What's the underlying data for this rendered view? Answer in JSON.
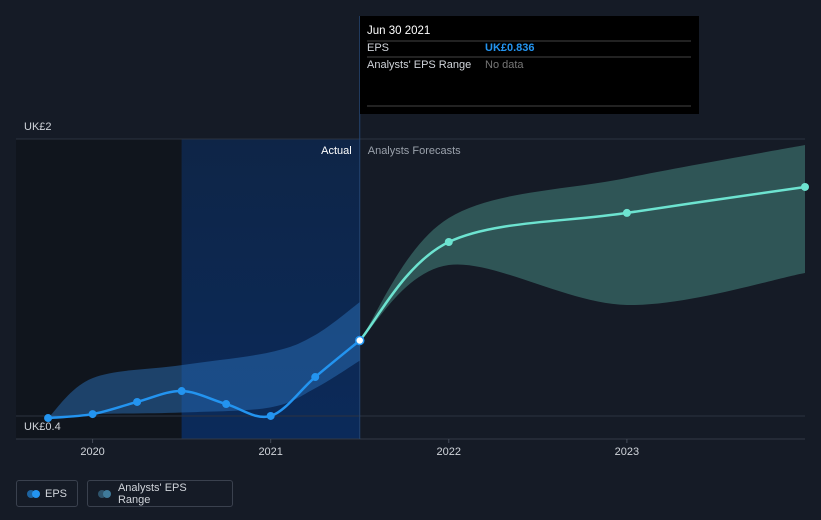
{
  "chart_data": {
    "type": "line",
    "xlim": [
      2019.57,
      2024
    ],
    "xticks": [
      2020,
      2021,
      2022,
      2023
    ],
    "ylim": [
      0.267,
      2
    ],
    "yticks": [
      {
        "value": 2,
        "label": "UK£2"
      },
      {
        "value": 0.4,
        "label": "UK£0.4"
      }
    ],
    "grid": true,
    "series": [
      {
        "name": "EPS",
        "color": "#2394f0",
        "x": [
          2019.75,
          2020,
          2020.25,
          2020.5,
          2020.75,
          2021,
          2021.25,
          2021.5
        ],
        "values": [
          0.388,
          0.411,
          0.481,
          0.544,
          0.469,
          0.4,
          0.625,
          0.836
        ],
        "forecast": {
          "color": "#6de3d0",
          "x": [
            2021.5,
            2022,
            2023,
            2024
          ],
          "values": [
            0.836,
            1.405,
            1.573,
            1.723
          ]
        }
      }
    ],
    "range": {
      "name": "Analysts' EPS Range",
      "color": "#3f7a9a",
      "bands": [
        {
          "color": "#2a6fb8",
          "x": [
            2019.75,
            2020,
            2020.5,
            2021,
            2021.25,
            2021.5
          ],
          "high": [
            0.388,
            0.619,
            0.694,
            0.769,
            0.868,
            1.058
          ],
          "low": [
            0.388,
            0.41,
            0.42,
            0.45,
            0.56,
            0.72
          ]
        },
        {
          "color": "#4a8f86",
          "x": [
            2021.5,
            2022,
            2023,
            2024
          ],
          "high": [
            0.836,
            1.544,
            1.775,
            1.965
          ],
          "low": [
            0.836,
            1.272,
            1.041,
            1.226
          ]
        }
      ]
    },
    "labels": {
      "actual": "Actual",
      "forecast": "Analysts Forecasts"
    },
    "tooltip": {
      "title": "Jun 30 2021",
      "rows": [
        {
          "label": "EPS",
          "value": "UK£0.836"
        },
        {
          "label": "Analysts' EPS Range",
          "value": "No data"
        }
      ]
    }
  }
}
